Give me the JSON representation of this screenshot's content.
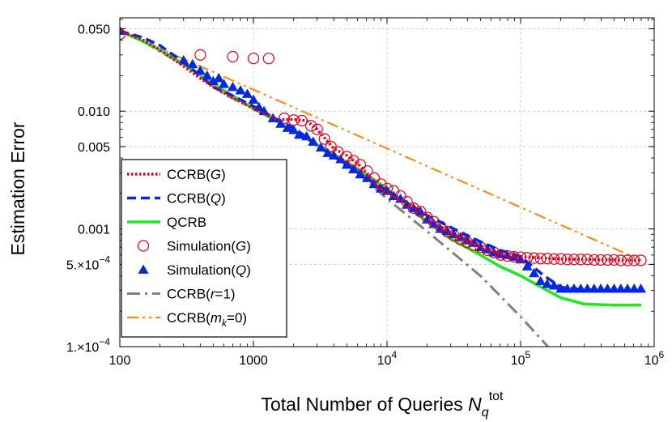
{
  "chart_data": {
    "type": "line",
    "scale": "log-log",
    "title": "",
    "xlabel": "Total Number of Queries N_q^tot",
    "xlabel_parts": {
      "main": "Total Number of Queries ",
      "var": "N",
      "sub": "q",
      "sup": "tot"
    },
    "ylabel": "Estimation Error",
    "xlim": [
      100,
      1000000
    ],
    "ylim": [
      0.0001,
      0.062
    ],
    "grid": true,
    "legend_position": "bottom-left",
    "x_ticks": [
      {
        "value": 100,
        "label": "100"
      },
      {
        "value": 1000,
        "label": "1000"
      },
      {
        "value": 10000,
        "base": "10",
        "exp": "4"
      },
      {
        "value": 100000,
        "base": "10",
        "exp": "5"
      },
      {
        "value": 1000000,
        "base": "10",
        "exp": "6"
      }
    ],
    "y_ticks": [
      {
        "value": 0.05,
        "label": "0.050"
      },
      {
        "value": 0.01,
        "label": "0.010"
      },
      {
        "value": 0.005,
        "label": "0.005"
      },
      {
        "value": 0.001,
        "label": "0.001"
      },
      {
        "value": 0.0005,
        "mant": "5.×10",
        "exp": "−4"
      },
      {
        "value": 0.0001,
        "mant": "1.×10",
        "exp": "−4"
      }
    ],
    "series": [
      {
        "name": "CCRB(G)",
        "label_main": "CCRB(",
        "label_italic": "G",
        "label_end": ")",
        "style": "dotted",
        "color": "#e6001a",
        "x": [
          100,
          150,
          200,
          300,
          400,
          500,
          700,
          1000,
          1500,
          2000,
          2500,
          3000,
          3500,
          4000,
          5000,
          6000,
          7000,
          8000,
          9000,
          10000,
          12000,
          15000,
          20000,
          25000,
          30000,
          40000,
          50000,
          70000,
          100000,
          200000,
          500000,
          800000
        ],
        "y": [
          0.048,
          0.04,
          0.033,
          0.024,
          0.019,
          0.016,
          0.013,
          0.0105,
          0.0085,
          0.0085,
          0.0083,
          0.007,
          0.0057,
          0.0048,
          0.0042,
          0.0036,
          0.003,
          0.0025,
          0.0022,
          0.002,
          0.0018,
          0.0016,
          0.0013,
          0.00105,
          0.00092,
          0.00079,
          0.0007,
          0.00062,
          0.00058,
          0.000555,
          0.000545,
          0.00054
        ]
      },
      {
        "name": "CCRB(Q)",
        "label_main": "CCRB(",
        "label_italic": "Q",
        "label_end": ")",
        "style": "dashed",
        "color": "#0026e6",
        "x": [
          100,
          150,
          200,
          300,
          400,
          500,
          700,
          1000,
          1500,
          2000,
          2500,
          3000,
          4000,
          5000,
          7000,
          10000,
          15000,
          20000,
          30000,
          40000,
          50000,
          70000,
          100000,
          150000,
          200000,
          300000,
          500000,
          800000
        ],
        "y": [
          0.048,
          0.042,
          0.036,
          0.026,
          0.02,
          0.016,
          0.0135,
          0.011,
          0.0085,
          0.0072,
          0.006,
          0.0051,
          0.0041,
          0.0035,
          0.0027,
          0.0021,
          0.0016,
          0.0013,
          0.00103,
          0.00088,
          0.00078,
          0.00066,
          0.00058,
          0.0004,
          0.00032,
          0.000305,
          0.0003,
          0.0003
        ]
      },
      {
        "name": "QCRB",
        "label_main": "QCRB",
        "label_italic": "",
        "label_end": "",
        "style": "solid",
        "color": "#1ee81e",
        "x": [
          100,
          150,
          200,
          300,
          500,
          700,
          1000,
          1500,
          2000,
          3000,
          5000,
          7000,
          10000,
          15000,
          20000,
          30000,
          50000,
          70000,
          100000,
          150000,
          200000,
          300000,
          500000,
          800000
        ],
        "y": [
          0.048,
          0.039,
          0.033,
          0.025,
          0.017,
          0.0135,
          0.0105,
          0.0082,
          0.0068,
          0.0052,
          0.0037,
          0.0029,
          0.0022,
          0.0015,
          0.00115,
          0.00082,
          0.0006,
          0.00048,
          0.0004,
          0.00031,
          0.00026,
          0.00023,
          0.000225,
          0.000225
        ]
      },
      {
        "name": "Simulation(G)",
        "label_main": "Simulation(",
        "label_italic": "G",
        "label_end": ")",
        "style": "markers",
        "marker": "circle",
        "color": "#e6001a",
        "x": [
          100,
          400,
          700,
          1000,
          1300,
          1700,
          2000,
          2300,
          2700,
          3000,
          3400,
          3800,
          4300,
          5000,
          5600,
          6300,
          7100,
          8000,
          9000,
          10000,
          11200,
          12600,
          14100,
          15800,
          17800,
          20000,
          22400,
          25100,
          28200,
          31600,
          35500,
          39800,
          44700,
          50100,
          56200,
          63100,
          70800,
          79400,
          89100,
          100000,
          112000,
          126000,
          141000,
          158000,
          178000,
          200000,
          224000,
          251000,
          282000,
          316000,
          355000,
          398000,
          447000,
          501000,
          562000,
          631000,
          708000,
          794000
        ],
        "y": [
          0.045,
          0.03,
          0.029,
          0.028,
          0.028,
          0.0087,
          0.0084,
          0.0083,
          0.0075,
          0.007,
          0.0058,
          0.005,
          0.0045,
          0.0041,
          0.0038,
          0.0035,
          0.0031,
          0.0027,
          0.0024,
          0.0022,
          0.0021,
          0.0019,
          0.0017,
          0.0015,
          0.0014,
          0.00125,
          0.00115,
          0.00105,
          0.00095,
          0.00088,
          0.00081,
          0.00077,
          0.00073,
          0.0007,
          0.00066,
          0.00063,
          0.0006,
          0.00059,
          0.00058,
          0.000575,
          0.00057,
          0.000565,
          0.00056,
          0.00056,
          0.000555,
          0.000555,
          0.00055,
          0.00055,
          0.00055,
          0.00055,
          0.000545,
          0.000545,
          0.000545,
          0.000545,
          0.00054,
          0.00054,
          0.00054,
          0.00054
        ]
      },
      {
        "name": "Simulation(Q)",
        "label_main": "Simulation(",
        "label_italic": "Q",
        "label_end": ")",
        "style": "markers",
        "marker": "triangle",
        "color": "#0026e6",
        "x": [
          100,
          300,
          350,
          400,
          450,
          500,
          550,
          600,
          700,
          800,
          900,
          1000,
          1100,
          1200,
          1400,
          1600,
          1800,
          2000,
          2200,
          2500,
          2800,
          3200,
          3600,
          4000,
          4500,
          5000,
          5600,
          6300,
          7100,
          8000,
          9000,
          10000,
          11200,
          12600,
          14100,
          15800,
          17800,
          20000,
          22400,
          25100,
          28200,
          31600,
          35500,
          39800,
          44700,
          50100,
          56200,
          63100,
          70800,
          79400,
          89100,
          100000,
          112000,
          126000,
          141000,
          158000,
          178000,
          200000,
          224000,
          251000,
          282000,
          316000,
          355000,
          398000,
          447000,
          501000,
          562000,
          631000,
          708000,
          794000
        ],
        "y": [
          0.048,
          0.027,
          0.025,
          0.022,
          0.02,
          0.018,
          0.019,
          0.017,
          0.016,
          0.015,
          0.014,
          0.0125,
          0.0108,
          0.01,
          0.0087,
          0.0078,
          0.0072,
          0.0069,
          0.0063,
          0.0061,
          0.0055,
          0.0049,
          0.0044,
          0.0042,
          0.0039,
          0.0035,
          0.0032,
          0.0029,
          0.0027,
          0.0024,
          0.0022,
          0.0021,
          0.0019,
          0.0018,
          0.0016,
          0.0015,
          0.0014,
          0.0012,
          0.0011,
          0.001,
          0.00096,
          0.0009,
          0.00085,
          0.0008,
          0.00076,
          0.0007,
          0.00067,
          0.00063,
          0.00061,
          0.0006,
          0.00058,
          0.00055,
          0.00048,
          0.00042,
          0.00036,
          0.00034,
          0.00033,
          0.00031,
          0.00031,
          0.00031,
          0.00031,
          0.00031,
          0.00031,
          0.00031,
          0.00031,
          0.00031,
          0.00031,
          0.00031,
          0.00031,
          0.00031
        ]
      },
      {
        "name": "CCRB(r=1)",
        "label_main": "CCRB(",
        "label_italic": "r",
        "label_end": "=1)",
        "style": "dashdot",
        "color": "#808080",
        "x": [
          100,
          150,
          200,
          300,
          400,
          600,
          1000,
          1500,
          2000,
          3000,
          5000,
          7000,
          10000,
          20000,
          50000,
          100000,
          160000
        ],
        "y": [
          0.048,
          0.039,
          0.032,
          0.025,
          0.02,
          0.014,
          0.0105,
          0.0081,
          0.0068,
          0.0051,
          0.0035,
          0.0026,
          0.0018,
          0.00095,
          0.0004,
          0.00018,
          0.0001
        ]
      },
      {
        "name": "CCRB(m_k=0)",
        "label_main": "CCRB(",
        "label_italic": "m",
        "label_sub": "k",
        "label_end": "=0)",
        "style": "dashdotdot",
        "color": "#ff8c1a",
        "x": [
          100,
          800000
        ],
        "y": [
          0.048,
          0.00054
        ]
      }
    ]
  }
}
